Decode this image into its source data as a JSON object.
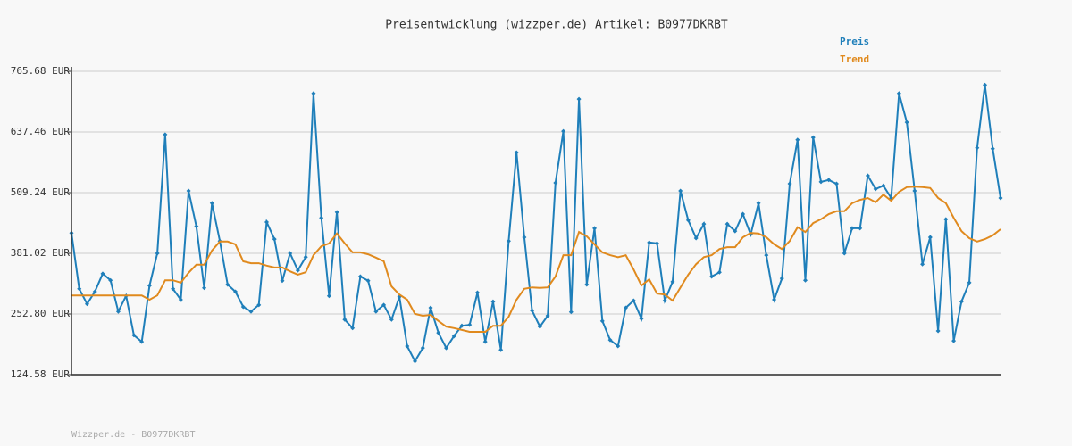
{
  "chart_data": {
    "type": "line",
    "title": "Preisentwicklung (wizzper.de) Artikel: B0977DKRBT",
    "footer": "Wizzper.de - B0977DKRBT",
    "ylim": [
      124.58,
      765.68
    ],
    "yticks": [
      {
        "value": 124.58,
        "label": "124.58 EUR"
      },
      {
        "value": 252.8,
        "label": "252.80 EUR"
      },
      {
        "value": 381.02,
        "label": "381.02 EUR"
      },
      {
        "value": 509.24,
        "label": "509.24 EUR"
      },
      {
        "value": 637.46,
        "label": "637.46 EUR"
      },
      {
        "value": 765.68,
        "label": "765.68 EUR"
      }
    ],
    "grid": true,
    "legend": "top-right",
    "series": [
      {
        "name": "Preis",
        "color": "#1f7fba",
        "markers": true,
        "values": [
          424,
          306,
          274,
          300,
          338,
          324,
          258,
          291,
          208,
          194,
          313,
          381,
          632,
          306,
          283,
          513,
          438,
          308,
          487,
          407,
          315,
          300,
          268,
          258,
          272,
          447,
          411,
          323,
          381,
          345,
          373,
          719,
          456,
          291,
          468,
          241,
          223,
          332,
          323,
          258,
          272,
          241,
          289,
          185,
          153,
          181,
          266,
          213,
          181,
          206,
          228,
          230,
          298,
          194,
          279,
          177,
          407,
          594,
          415,
          260,
          226,
          249,
          530,
          639,
          257,
          707,
          315,
          434,
          238,
          198,
          185,
          266,
          281,
          243,
          404,
          402,
          281,
          321,
          513,
          451,
          413,
          443,
          332,
          341,
          443,
          428,
          464,
          421,
          487,
          377,
          283,
          328,
          528,
          621,
          324,
          626,
          532,
          536,
          528,
          381,
          434,
          434,
          545,
          517,
          524,
          498,
          719,
          658,
          513,
          358,
          415,
          217,
          453,
          196,
          279,
          319,
          604,
          737,
          602,
          498
        ]
      },
      {
        "name": "Trend",
        "color": "#e08a1e",
        "markers": false,
        "values": [
          292,
          292,
          292,
          292,
          292,
          292,
          292,
          292,
          292,
          292,
          283,
          292,
          324,
          324,
          319,
          340,
          357,
          357,
          387,
          406,
          406,
          400,
          364,
          360,
          360,
          355,
          351,
          351,
          343,
          336,
          341,
          377,
          396,
          402,
          423,
          402,
          383,
          383,
          379,
          372,
          364,
          311,
          294,
          283,
          253,
          249,
          251,
          238,
          226,
          223,
          219,
          215,
          215,
          215,
          228,
          228,
          247,
          283,
          306,
          309,
          308,
          309,
          332,
          377,
          377,
          426,
          417,
          400,
          383,
          377,
          373,
          377,
          347,
          313,
          326,
          296,
          294,
          281,
          309,
          336,
          358,
          373,
          377,
          390,
          394,
          394,
          415,
          424,
          423,
          415,
          400,
          390,
          407,
          436,
          426,
          445,
          453,
          464,
          470,
          470,
          487,
          494,
          498,
          489,
          505,
          492,
          511,
          521,
          522,
          521,
          519,
          498,
          487,
          456,
          428,
          413,
          406,
          411,
          419,
          432
        ]
      }
    ]
  }
}
